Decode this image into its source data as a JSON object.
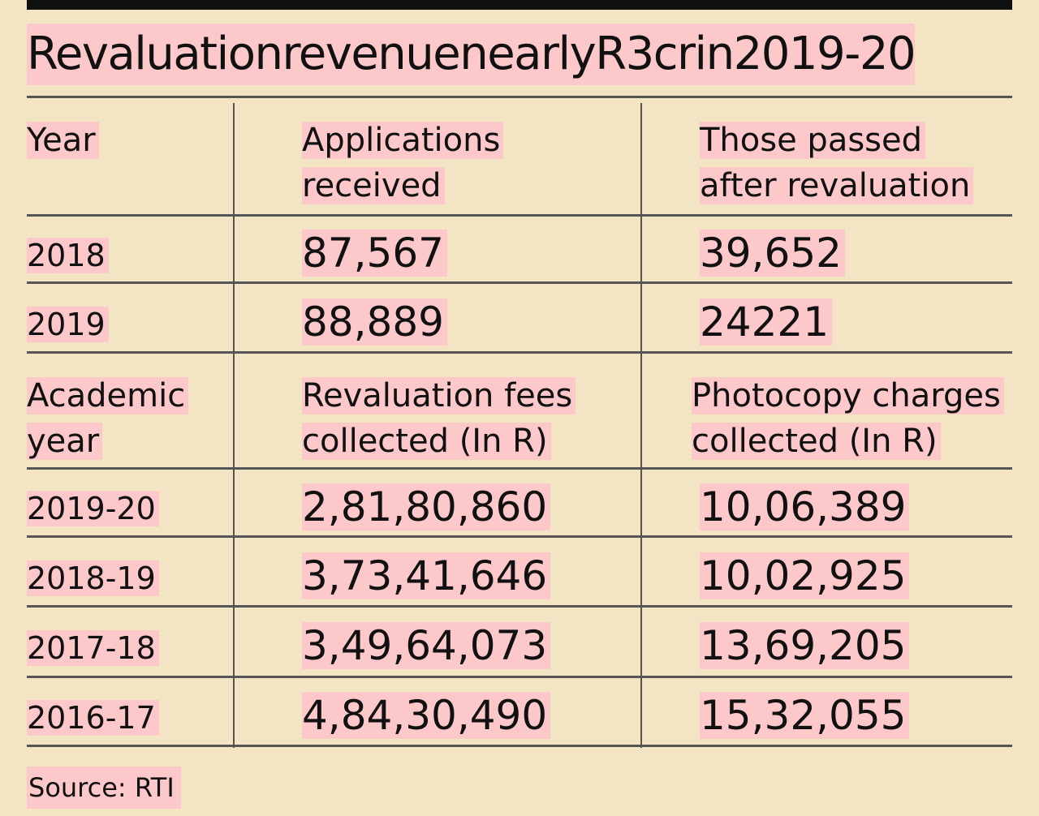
{
  "title": "RevaluationrevenuenearlyR3crin2019-20",
  "table1": {
    "headers": [
      "Year",
      "Applications received",
      "Those passed after revaluation"
    ],
    "header_lines": [
      [
        "Year"
      ],
      [
        "Applications",
        "received"
      ],
      [
        "Those passed",
        "after revaluation"
      ]
    ],
    "rows": [
      [
        "2018",
        "87,567",
        "39,652"
      ],
      [
        "2019",
        "88,889",
        "24221"
      ]
    ]
  },
  "table2": {
    "headers": [
      "Academic year",
      "Revaluation fees collected (In R)",
      "Photocopy charges collected (In R)"
    ],
    "header_lines": [
      [
        "Academic",
        "year"
      ],
      [
        "Revaluation fees",
        "collected (In R)"
      ],
      [
        "Photocopy charges",
        "collected (In R)"
      ]
    ],
    "rows": [
      [
        "2019-20",
        "2,81,80,860",
        "10,06,389"
      ],
      [
        "2018-19",
        "3,73,41,646",
        "10,02,925"
      ],
      [
        "2017-18",
        "3,49,64,073",
        "13,69,205"
      ],
      [
        "2016-17",
        "4,84,30,490",
        "15,32,055"
      ]
    ]
  },
  "source": "Source: RTI",
  "colors": {
    "background": "#f3e5c4",
    "highlight": "#fcc8c9",
    "rule": "#555555",
    "bar": "#111111"
  }
}
